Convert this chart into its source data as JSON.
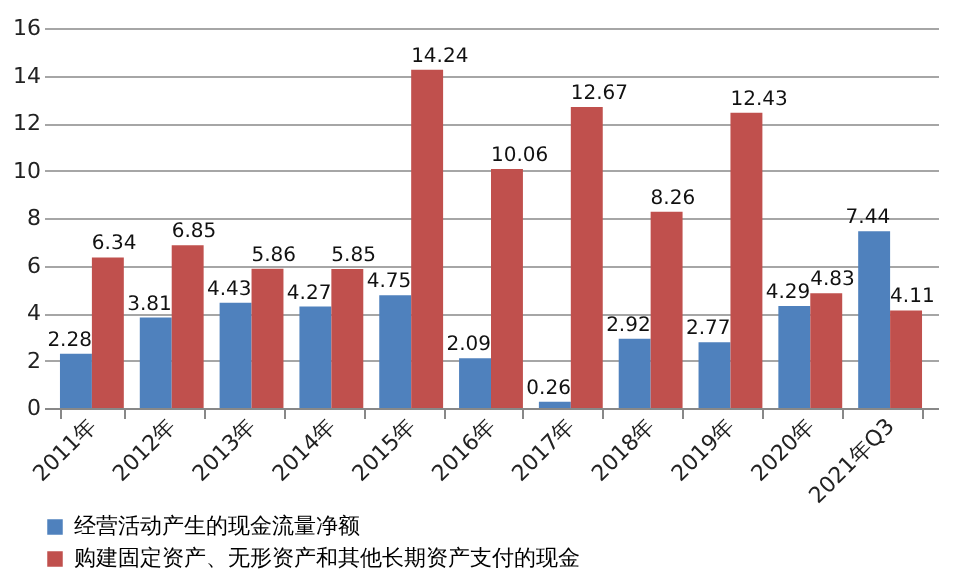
{
  "chart_data": {
    "type": "bar",
    "categories": [
      "2011年",
      "2012年",
      "2013年",
      "2014年",
      "2015年",
      "2016年",
      "2017年",
      "2018年",
      "2019年",
      "2020年",
      "2021年Q3"
    ],
    "series": [
      {
        "name": "经营活动产生的现金流量净额",
        "color": "#4f81bd",
        "values": [
          2.28,
          3.81,
          4.43,
          4.27,
          4.75,
          2.09,
          0.26,
          2.92,
          2.77,
          4.29,
          7.44
        ]
      },
      {
        "name": "购建固定资产、无形资产和其他长期资产支付的现金",
        "color": "#c0504d",
        "values": [
          6.34,
          6.85,
          5.86,
          5.85,
          14.24,
          10.06,
          12.67,
          8.26,
          12.43,
          4.83,
          4.11
        ]
      }
    ],
    "ylim": [
      0,
      16
    ],
    "yticks": [
      0,
      2,
      4,
      6,
      8,
      10,
      12,
      14,
      16
    ],
    "grid": "y",
    "legend": "bottom",
    "data_labels": true
  }
}
